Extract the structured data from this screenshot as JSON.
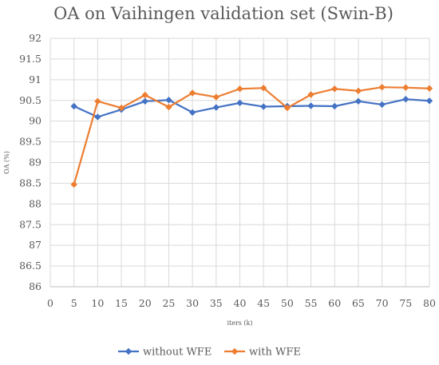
{
  "chart_data": {
    "type": "line",
    "title": "OA on Vaihingen validation set (Swin-B)",
    "xlabel": "iters (k)",
    "ylabel": "OA (%)",
    "xlim": [
      0,
      80
    ],
    "ylim": [
      86,
      92
    ],
    "xticks": [
      0,
      5,
      10,
      15,
      20,
      25,
      30,
      35,
      40,
      45,
      50,
      55,
      60,
      65,
      70,
      75,
      80
    ],
    "yticks": [
      86,
      86.5,
      87,
      87.5,
      88,
      88.5,
      89,
      89.5,
      90,
      90.5,
      91,
      91.5,
      92
    ],
    "grid": true,
    "legend_position": "bottom",
    "x": [
      5,
      10,
      15,
      20,
      25,
      30,
      35,
      40,
      45,
      50,
      55,
      60,
      65,
      70,
      75,
      80
    ],
    "series": [
      {
        "name": "without WFE",
        "color": "#4472c4",
        "marker": "diamond",
        "values": [
          90.36,
          90.1,
          90.28,
          90.48,
          90.51,
          90.21,
          90.33,
          90.44,
          90.35,
          90.36,
          90.37,
          90.36,
          90.48,
          90.4,
          90.53,
          90.49
        ]
      },
      {
        "name": "with WFE",
        "color": "#ed7d31",
        "marker": "diamond",
        "values": [
          88.47,
          90.48,
          90.32,
          90.63,
          90.34,
          90.68,
          90.58,
          90.78,
          90.8,
          90.32,
          90.64,
          90.78,
          90.73,
          90.82,
          90.81,
          90.79
        ]
      }
    ]
  }
}
